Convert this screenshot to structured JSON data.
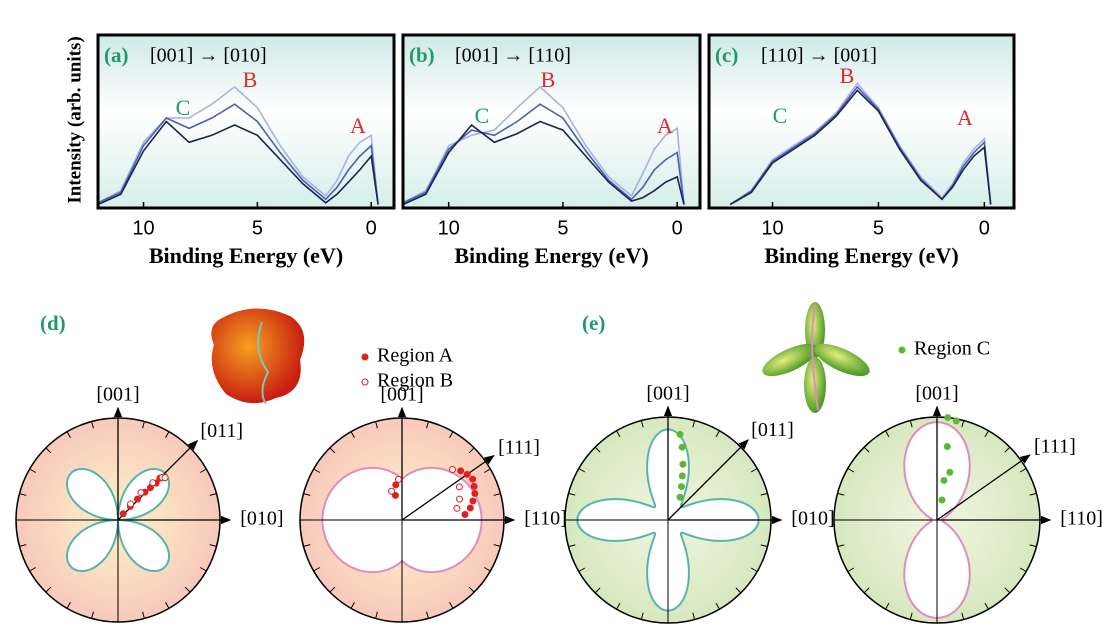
{
  "chart_data": [
    {
      "type": "line",
      "panel_label": "(a)",
      "title": "[001] → [010]",
      "y_label": "Intensity (arb. units)",
      "x_label": "Binding Energy (eV)",
      "x": [
        12,
        11,
        10,
        9,
        8,
        7,
        6,
        5,
        4,
        3,
        2,
        1.5,
        1,
        0.5,
        0,
        -0.3
      ],
      "xlim": [
        12,
        -1
      ],
      "xticks": [
        10,
        5,
        0
      ],
      "ylim": [
        0,
        1
      ],
      "annotations": [
        {
          "text": "C",
          "color": "#1f9a6a"
        },
        {
          "text": "B",
          "color": "#e02828"
        },
        {
          "text": "A",
          "color": "#e02828"
        }
      ],
      "series": [
        {
          "color": "#a9b2e0",
          "values": [
            0.03,
            0.1,
            0.38,
            0.52,
            0.52,
            0.6,
            0.7,
            0.58,
            0.36,
            0.18,
            0.07,
            0.16,
            0.3,
            0.38,
            0.42,
            0.02
          ]
        },
        {
          "color": "#4c60b8",
          "values": [
            0.03,
            0.09,
            0.36,
            0.52,
            0.46,
            0.52,
            0.6,
            0.5,
            0.32,
            0.16,
            0.05,
            0.12,
            0.22,
            0.3,
            0.36,
            0.02
          ]
        },
        {
          "color": "#1c2550",
          "values": [
            0.02,
            0.08,
            0.33,
            0.5,
            0.38,
            0.42,
            0.48,
            0.42,
            0.28,
            0.14,
            0.03,
            0.08,
            0.15,
            0.22,
            0.3,
            0.02
          ]
        }
      ]
    },
    {
      "type": "line",
      "panel_label": "(b)",
      "title": "[001] → [110]",
      "x_label": "Binding Energy (eV)",
      "x": [
        12,
        11,
        10,
        9,
        8,
        7,
        6,
        5,
        4,
        3,
        2,
        1.5,
        1,
        0.5,
        0,
        -0.3
      ],
      "xlim": [
        12,
        -1
      ],
      "xticks": [
        10,
        5,
        0
      ],
      "ylim": [
        0,
        1
      ],
      "annotations": [
        {
          "text": "C",
          "color": "#1f9a6a"
        },
        {
          "text": "B",
          "color": "#e02828"
        },
        {
          "text": "A",
          "color": "#e02828"
        }
      ],
      "series": [
        {
          "color": "#a9b2e0",
          "values": [
            0.03,
            0.1,
            0.36,
            0.42,
            0.45,
            0.58,
            0.7,
            0.58,
            0.36,
            0.18,
            0.07,
            0.2,
            0.34,
            0.42,
            0.46,
            0.02
          ]
        },
        {
          "color": "#4c60b8",
          "values": [
            0.03,
            0.09,
            0.34,
            0.45,
            0.42,
            0.5,
            0.6,
            0.52,
            0.33,
            0.16,
            0.05,
            0.12,
            0.22,
            0.28,
            0.32,
            0.02
          ]
        },
        {
          "color": "#1c2550",
          "values": [
            0.02,
            0.08,
            0.32,
            0.48,
            0.38,
            0.43,
            0.5,
            0.45,
            0.3,
            0.15,
            0.04,
            0.06,
            0.1,
            0.15,
            0.18,
            0.02
          ]
        }
      ]
    },
    {
      "type": "line",
      "panel_label": "(c)",
      "title": "[110] → [001]",
      "x_label": "Binding Energy (eV)",
      "x": [
        12,
        11,
        10,
        9,
        8,
        7,
        6,
        5,
        4,
        3,
        2,
        1.5,
        1,
        0.5,
        0,
        -0.3
      ],
      "xlim": [
        13,
        -1.4
      ],
      "xticks": [
        10,
        5,
        0
      ],
      "ylim": [
        0,
        1
      ],
      "annotations": [
        {
          "text": "C",
          "color": "#1f9a6a"
        },
        {
          "text": "B",
          "color": "#e02828"
        },
        {
          "text": "A",
          "color": "#e02828"
        }
      ],
      "series": [
        {
          "color": "#a9b2e0",
          "values": [
            0.02,
            0.1,
            0.28,
            0.36,
            0.44,
            0.55,
            0.72,
            0.58,
            0.36,
            0.18,
            0.06,
            0.14,
            0.26,
            0.34,
            0.4,
            0.02
          ]
        },
        {
          "color": "#4c60b8",
          "values": [
            0.02,
            0.1,
            0.27,
            0.35,
            0.43,
            0.54,
            0.7,
            0.57,
            0.35,
            0.17,
            0.05,
            0.13,
            0.24,
            0.32,
            0.38,
            0.02
          ]
        },
        {
          "color": "#1c2550",
          "values": [
            0.02,
            0.09,
            0.26,
            0.34,
            0.42,
            0.53,
            0.68,
            0.56,
            0.34,
            0.16,
            0.05,
            0.12,
            0.22,
            0.3,
            0.35,
            0.02
          ]
        }
      ]
    },
    {
      "type": "polar",
      "panel_label": "(d)",
      "rlim": [
        0,
        1
      ],
      "plots": [
        {
          "axes": [
            "[001]",
            "[011]",
            "[010]"
          ]
        },
        {
          "axes": [
            "[001]",
            "[111]",
            "[110]"
          ]
        }
      ],
      "series": [
        {
          "name": "Region A",
          "color": "#e02020",
          "filled": true,
          "plots": [
            {
              "theta": [
                50,
                48,
                47,
                46,
                45,
                44,
                45,
                43
              ],
              "r": [
                0.08,
                0.18,
                0.28,
                0.38,
                0.45,
                0.52,
                0.58,
                0.62
              ]
            },
            {
              "theta": [
                105,
                100,
                40,
                35,
                30,
                25,
                20,
                15,
                10,
                5
              ],
              "r": [
                0.25,
                0.35,
                0.75,
                0.78,
                0.8,
                0.78,
                0.76,
                0.72,
                0.68,
                0.62
              ]
            }
          ]
        },
        {
          "name": "Region B",
          "color": "#e02020",
          "filled": false,
          "plots": [
            {
              "theta": [
                52,
                50,
                47,
                44,
                42
              ],
              "r": [
                0.2,
                0.35,
                0.5,
                0.6,
                0.62
              ]
            },
            {
              "theta": [
                110,
                95,
                45,
                30,
                20,
                12
              ],
              "r": [
                0.3,
                0.4,
                0.7,
                0.65,
                0.6,
                0.55
              ]
            }
          ]
        }
      ]
    },
    {
      "type": "polar",
      "panel_label": "(e)",
      "rlim": [
        0,
        1
      ],
      "plots": [
        {
          "axes": [
            "[001]",
            "[011]",
            "[010]"
          ]
        },
        {
          "axes": [
            "[001]",
            "[111]",
            "[110]"
          ]
        }
      ],
      "series": [
        {
          "name": "Region C",
          "color": "#5cb832",
          "filled": true,
          "plots": [
            {
              "theta": [
                82,
                79,
                75,
                72,
                68,
                62
              ],
              "r": [
                0.84,
                0.72,
                0.56,
                0.45,
                0.35,
                0.25
              ]
            },
            {
              "theta": [
                84,
                79,
                82,
                80,
                75,
                76
              ],
              "r": [
                1.0,
                0.98,
                0.72,
                0.39,
                0.48,
                0.2
              ]
            }
          ]
        }
      ]
    }
  ]
}
